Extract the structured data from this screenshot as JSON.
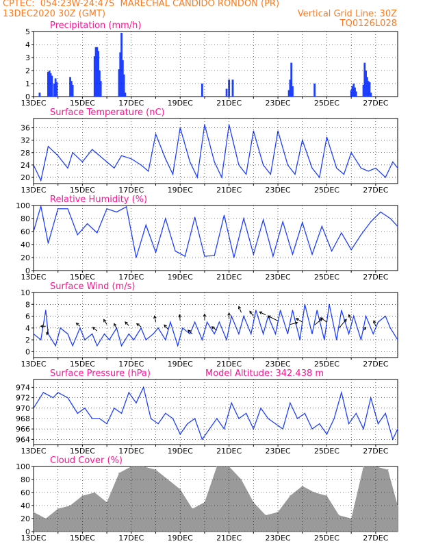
{
  "header": {
    "line1_left": "CPTEC:  054:23W-24:47S  MARECHAL CANDIDO RONDON (PR)",
    "line2_left": "13DEC2020 30Z (GMT)",
    "line2_right": "Vertical Grid Line: 30Z",
    "line3_right": "TQ0126L028"
  },
  "colors": {
    "header": "#ff7a1f",
    "title": "#ff1493",
    "line": "#1f3fff",
    "bars": "#1f3fff",
    "cloud": "#9a9a9a",
    "wind_arrow": "#000000",
    "axis": "#000000"
  },
  "x_axis": {
    "tick_labels": [
      "13DEC",
      "15DEC",
      "17DEC",
      "19DEC",
      "21DEC",
      "23DEC",
      "25DEC",
      "27DEC"
    ],
    "tick_days": [
      0,
      2,
      4,
      6,
      8,
      10,
      12,
      14
    ],
    "range_days": [
      0,
      14.9
    ],
    "vertical_grid_hours": "30Z"
  },
  "chart_data": [
    {
      "type": "bar",
      "title": "Precipitation (mm/h)",
      "ylim": [
        0,
        5
      ],
      "yticks": [
        0,
        1,
        2,
        3,
        4,
        5
      ],
      "x_days": [
        0.25,
        0.6,
        0.65,
        0.7,
        0.75,
        0.85,
        0.9,
        0.95,
        1.5,
        1.55,
        1.6,
        2.5,
        2.55,
        2.6,
        2.65,
        2.7,
        2.75,
        3.5,
        3.55,
        3.6,
        3.65,
        3.7,
        3.75,
        6.9,
        7.9,
        8.0,
        8.15,
        10.45,
        10.5,
        10.55,
        10.6,
        11.5,
        13.0,
        13.05,
        13.1,
        13.15,
        13.2,
        13.5,
        13.55,
        13.6,
        13.65,
        13.7,
        13.75,
        13.8
      ],
      "values": [
        0.3,
        1.9,
        2.0,
        1.8,
        1.6,
        1.0,
        1.4,
        1.1,
        1.5,
        1.2,
        0.9,
        3.1,
        3.8,
        3.8,
        3.5,
        2.0,
        1.2,
        2.1,
        3.4,
        4.9,
        2.8,
        1.7,
        0.3,
        1.0,
        0.6,
        1.3,
        1.3,
        0.5,
        1.3,
        2.6,
        0.8,
        1.0,
        0.5,
        0.8,
        1.0,
        0.7,
        0.4,
        0.9,
        2.6,
        2.0,
        1.5,
        1.2,
        1.1,
        0.3
      ]
    },
    {
      "type": "line",
      "title": "Surface Temperature (nC)",
      "ylim": [
        18,
        39
      ],
      "yticks": [
        20,
        24,
        28,
        32,
        36
      ],
      "x_days": [
        0,
        0.3,
        0.6,
        1.0,
        1.4,
        1.6,
        2.0,
        2.4,
        2.7,
        3.0,
        3.3,
        3.6,
        4.0,
        4.4,
        4.7,
        5.0,
        5.4,
        5.7,
        6.0,
        6.4,
        6.7,
        7.0,
        7.4,
        7.7,
        8.0,
        8.4,
        8.7,
        9.0,
        9.4,
        9.7,
        10.0,
        10.4,
        10.7,
        11.0,
        11.4,
        11.7,
        12.0,
        12.4,
        12.7,
        13.0,
        13.4,
        13.7,
        14.0,
        14.4,
        14.7,
        14.9
      ],
      "values": [
        24,
        19,
        30,
        27,
        23,
        28,
        25,
        29,
        27,
        25,
        23,
        27,
        26,
        24,
        22,
        34,
        26,
        21,
        36,
        25,
        20,
        37,
        25,
        20,
        37,
        24,
        21,
        35,
        24,
        21,
        35,
        24,
        21,
        32,
        23,
        20,
        33,
        23,
        21,
        28,
        23,
        22,
        23,
        20,
        25,
        23
      ]
    },
    {
      "type": "line",
      "title": "Relative Humidity (%)",
      "ylim": [
        0,
        100
      ],
      "yticks": [
        0,
        20,
        40,
        60,
        80,
        100
      ],
      "x_days": [
        0,
        0.3,
        0.6,
        1.0,
        1.4,
        1.8,
        2.2,
        2.6,
        3.0,
        3.4,
        3.8,
        4.2,
        4.6,
        5.0,
        5.4,
        5.8,
        6.2,
        6.6,
        7.0,
        7.4,
        7.8,
        8.2,
        8.6,
        9.0,
        9.4,
        9.8,
        10.2,
        10.6,
        11.0,
        11.4,
        11.8,
        12.2,
        12.6,
        13.0,
        13.4,
        13.8,
        14.2,
        14.6,
        14.9
      ],
      "values": [
        60,
        99,
        42,
        95,
        95,
        55,
        72,
        58,
        95,
        90,
        98,
        20,
        70,
        28,
        80,
        30,
        22,
        82,
        22,
        23,
        85,
        20,
        80,
        25,
        78,
        22,
        75,
        25,
        74,
        25,
        68,
        30,
        58,
        32,
        55,
        75,
        90,
        80,
        68
      ]
    },
    {
      "type": "line",
      "title": "Surface Wind (m/s)",
      "ylim": [
        -1,
        10
      ],
      "yticks": [
        0,
        2,
        4,
        6,
        8,
        10
      ],
      "x_days": [
        0,
        0.3,
        0.5,
        0.6,
        0.9,
        1.1,
        1.4,
        1.6,
        1.9,
        2.1,
        2.4,
        2.6,
        2.9,
        3.1,
        3.4,
        3.6,
        3.9,
        4.1,
        4.4,
        4.6,
        4.9,
        5.1,
        5.4,
        5.6,
        5.9,
        6.1,
        6.4,
        6.6,
        6.9,
        7.1,
        7.4,
        7.6,
        7.9,
        8.1,
        8.4,
        8.6,
        8.9,
        9.1,
        9.4,
        9.6,
        9.9,
        10.1,
        10.4,
        10.6,
        10.9,
        11.1,
        11.4,
        11.6,
        11.9,
        12.1,
        12.4,
        12.6,
        12.9,
        13.1,
        13.4,
        13.6,
        13.9,
        14.1,
        14.4,
        14.6,
        14.9
      ],
      "values": [
        3,
        2,
        7,
        3,
        1,
        4,
        3,
        1,
        4,
        2,
        3,
        1,
        3,
        2,
        4,
        1,
        3,
        2,
        4,
        2,
        3,
        4,
        2,
        5,
        1,
        4,
        3,
        5,
        2,
        5,
        3,
        5,
        2,
        6,
        3,
        6,
        3,
        7,
        3,
        6,
        3,
        7,
        3,
        7,
        2,
        8,
        3,
        7,
        2,
        8,
        2,
        7,
        3,
        6,
        2,
        6,
        3,
        5,
        6,
        4,
        2
      ],
      "wind_arrows": [
        {
          "x_day": 0.5,
          "speed": 4.3,
          "dx": -0.8,
          "dy": 0
        },
        {
          "x_day": 0.6,
          "speed": 3.8,
          "dx": -0.2,
          "dy": -0.9
        },
        {
          "x_day": 1.9,
          "speed": 4.3,
          "dx": -0.6,
          "dy": 0.5
        },
        {
          "x_day": 2.6,
          "speed": 3.5,
          "dx": -0.7,
          "dy": 0.6
        },
        {
          "x_day": 3.0,
          "speed": 4.6,
          "dx": -0.5,
          "dy": 0.8
        },
        {
          "x_day": 3.4,
          "speed": 3.9,
          "dx": -0.4,
          "dy": 0.8
        },
        {
          "x_day": 3.9,
          "speed": 4.4,
          "dx": -0.6,
          "dy": 0.6
        },
        {
          "x_day": 4.4,
          "speed": 4.2,
          "dx": -0.7,
          "dy": 0.5
        },
        {
          "x_day": 5.0,
          "speed": 5.0,
          "dx": -0.2,
          "dy": 1.0
        },
        {
          "x_day": 5.5,
          "speed": 3.8,
          "dx": -0.6,
          "dy": 0.7
        },
        {
          "x_day": 6.0,
          "speed": 5.2,
          "dx": -0.1,
          "dy": 1.0
        },
        {
          "x_day": 6.5,
          "speed": 3.0,
          "dx": -0.7,
          "dy": 0.6
        },
        {
          "x_day": 7.0,
          "speed": 5.3,
          "dx": 0.0,
          "dy": 1.0
        },
        {
          "x_day": 7.5,
          "speed": 3.6,
          "dx": -0.8,
          "dy": 0.6
        },
        {
          "x_day": 8.0,
          "speed": 5.5,
          "dx": 0.0,
          "dy": 1.0
        },
        {
          "x_day": 8.5,
          "speed": 6.6,
          "dx": -0.4,
          "dy": 1.0
        },
        {
          "x_day": 9.0,
          "speed": 6.0,
          "dx": -0.6,
          "dy": 0.8
        },
        {
          "x_day": 9.5,
          "speed": 6.2,
          "dx": -1.0,
          "dy": 0.5
        },
        {
          "x_day": 10.0,
          "speed": 5.2,
          "dx": -1.6,
          "dy": 0.8
        },
        {
          "x_day": 10.5,
          "speed": 4.6,
          "dx": 1.2,
          "dy": 0.3
        },
        {
          "x_day": 11.0,
          "speed": 5.0,
          "dx": -1.0,
          "dy": 0.6
        },
        {
          "x_day": 11.5,
          "speed": 4.5,
          "dx": 1.2,
          "dy": 1.0
        },
        {
          "x_day": 12.0,
          "speed": 5.0,
          "dx": -1.0,
          "dy": 0.7
        },
        {
          "x_day": 12.5,
          "speed": 4.0,
          "dx": 1.2,
          "dy": 1.4
        },
        {
          "x_day": 13.0,
          "speed": 5.2,
          "dx": -0.4,
          "dy": 1.0
        },
        {
          "x_day": 13.5,
          "speed": 3.6,
          "dx": 0.4,
          "dy": 0.5
        },
        {
          "x_day": 14.0,
          "speed": 4.3,
          "dx": -0.3,
          "dy": 0.9
        }
      ]
    },
    {
      "type": "line",
      "title": "Surface Pressure (hPa)",
      "subtitle": "Model Altitude: 342.438  m",
      "ylim": [
        963,
        975.5
      ],
      "yticks": [
        964,
        966,
        968,
        970,
        972,
        974
      ],
      "x_days": [
        0,
        0.4,
        0.8,
        1.0,
        1.4,
        1.8,
        2.1,
        2.4,
        2.7,
        3.0,
        3.3,
        3.6,
        3.9,
        4.2,
        4.5,
        4.8,
        5.1,
        5.4,
        5.7,
        6.0,
        6.3,
        6.6,
        6.9,
        7.2,
        7.5,
        7.8,
        8.1,
        8.4,
        8.7,
        9.0,
        9.3,
        9.6,
        9.9,
        10.2,
        10.5,
        10.8,
        11.1,
        11.4,
        11.7,
        12.0,
        12.3,
        12.6,
        12.9,
        13.2,
        13.5,
        13.8,
        14.1,
        14.4,
        14.7,
        14.9
      ],
      "values": [
        970,
        973,
        972,
        973,
        972,
        969,
        970,
        968,
        968,
        967,
        970,
        969,
        973,
        971,
        974,
        968,
        967,
        969,
        968,
        965,
        967,
        968,
        964,
        966,
        968,
        966,
        971,
        968,
        969,
        966,
        970,
        968,
        967,
        966,
        971,
        968,
        969,
        966,
        967,
        965,
        968,
        973,
        967,
        969,
        966,
        972,
        967,
        969,
        964,
        966
      ]
    },
    {
      "type": "area",
      "title": "Cloud Cover (%)",
      "ylim": [
        0,
        100
      ],
      "yticks": [
        0,
        20,
        40,
        60,
        80,
        100
      ],
      "x_days": [
        0,
        0.5,
        1.0,
        1.5,
        2.0,
        2.5,
        3.0,
        3.5,
        4.0,
        4.5,
        5.0,
        5.5,
        6.0,
        6.5,
        7.0,
        7.5,
        8.0,
        8.5,
        9.0,
        9.5,
        10.0,
        10.5,
        11.0,
        11.5,
        12.0,
        12.5,
        13.0,
        13.5,
        14.0,
        14.5,
        14.9
      ],
      "values": [
        30,
        20,
        35,
        40,
        55,
        60,
        45,
        90,
        100,
        100,
        95,
        80,
        65,
        35,
        45,
        100,
        100,
        80,
        45,
        25,
        30,
        55,
        70,
        60,
        55,
        25,
        20,
        100,
        100,
        95,
        40
      ]
    }
  ]
}
